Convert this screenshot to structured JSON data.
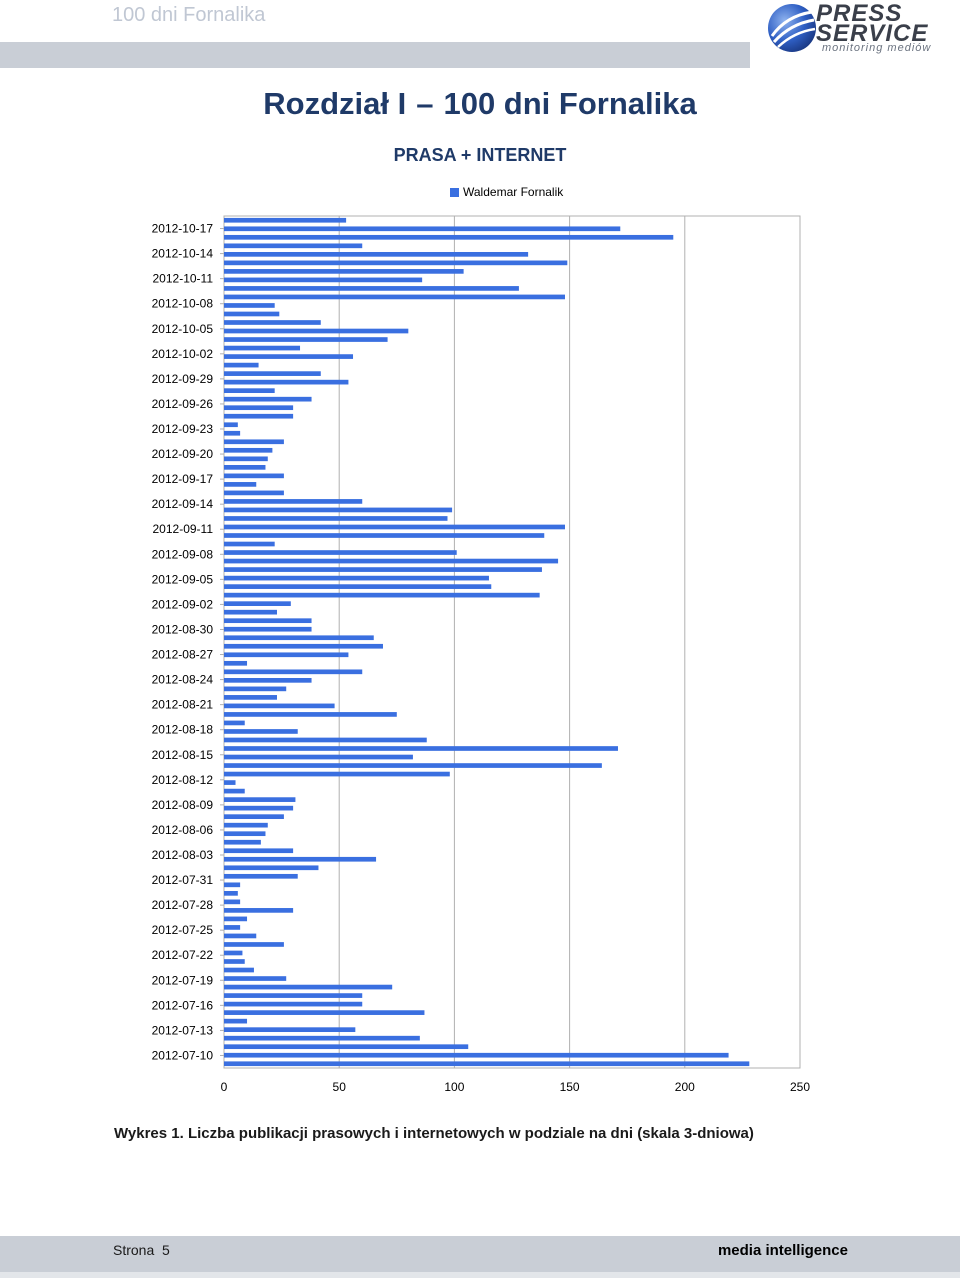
{
  "header": {
    "title": "100 dni Fornalika",
    "logo_text_1": "PRESS",
    "logo_text_2": "SERVICE",
    "logo_sub": "monitoring mediów"
  },
  "chapter": {
    "label": "Rozdział I",
    "dash": "–",
    "name": "100 dni Fornalika"
  },
  "chart_data": {
    "type": "bar",
    "orientation": "horizontal",
    "title": "PRASA + INTERNET",
    "legend": {
      "position": "top-right",
      "entries": [
        "Waldemar Fornalik"
      ]
    },
    "xlim": [
      0,
      250
    ],
    "x_ticks": [
      0,
      50,
      100,
      150,
      200,
      250
    ],
    "grid": true,
    "color": "#3a6fe0",
    "y_tick_labels": [
      "2012-10-17",
      "2012-10-14",
      "2012-10-11",
      "2012-10-08",
      "2012-10-05",
      "2012-10-02",
      "2012-09-29",
      "2012-09-26",
      "2012-09-23",
      "2012-09-20",
      "2012-09-17",
      "2012-09-14",
      "2012-09-11",
      "2012-09-08",
      "2012-09-05",
      "2012-09-02",
      "2012-08-30",
      "2012-08-27",
      "2012-08-24",
      "2012-08-21",
      "2012-08-18",
      "2012-08-15",
      "2012-08-12",
      "2012-08-09",
      "2012-08-06",
      "2012-08-03",
      "2012-07-31",
      "2012-07-28",
      "2012-07-25",
      "2012-07-22",
      "2012-07-19",
      "2012-07-16",
      "2012-07-13",
      "2012-07-10"
    ],
    "series": [
      {
        "name": "Waldemar Fornalik",
        "values": [
          53,
          172,
          195,
          60,
          132,
          149,
          104,
          86,
          128,
          148,
          22,
          24,
          42,
          80,
          71,
          33,
          56,
          15,
          42,
          54,
          22,
          38,
          30,
          30,
          6,
          7,
          26,
          21,
          19,
          18,
          26,
          14,
          26,
          60,
          99,
          97,
          148,
          139,
          22,
          101,
          145,
          138,
          115,
          116,
          137,
          29,
          23,
          38,
          38,
          65,
          69,
          54,
          10,
          60,
          38,
          27,
          23,
          48,
          75,
          9,
          32,
          88,
          171,
          82,
          164,
          98,
          5,
          9,
          31,
          30,
          26,
          19,
          18,
          16,
          30,
          66,
          41,
          32,
          7,
          6,
          7,
          30,
          10,
          7,
          14,
          26,
          8,
          9,
          13,
          27,
          73,
          60,
          60,
          87,
          10,
          57,
          85,
          106,
          219,
          228
        ]
      }
    ]
  },
  "caption": "Wykres 1. Liczba publikacji prasowych i internetowych w podziale na dni (skala 3-dniowa)",
  "footer": {
    "page_label": "Strona",
    "page_number": "5",
    "brand": "media intelligence"
  }
}
